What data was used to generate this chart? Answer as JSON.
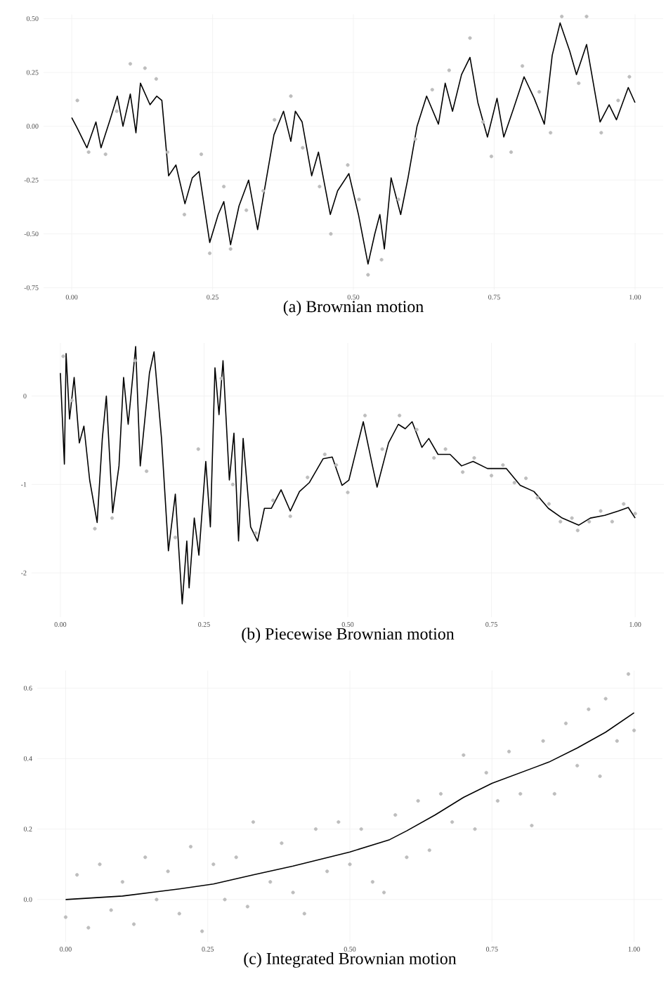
{
  "chart_data": [
    {
      "type": "line",
      "title": "(a) Brownian motion",
      "xlim": [
        -0.05,
        1.05
      ],
      "ylim": [
        -0.76,
        0.52
      ],
      "grid": true,
      "xticks": [
        {
          "value": 0,
          "label": "0.00"
        },
        {
          "value": 0.25,
          "label": "0.25"
        },
        {
          "value": 0.5,
          "label": "0.50"
        },
        {
          "value": 0.75,
          "label": "0.75"
        },
        {
          "value": 1,
          "label": "1.00"
        }
      ],
      "yticks": [
        {
          "value": -0.75,
          "label": "-0.75"
        },
        {
          "value": -0.5,
          "label": "-0.50"
        },
        {
          "value": -0.25,
          "label": "-0.25"
        },
        {
          "value": 0,
          "label": "0.00"
        },
        {
          "value": 0.25,
          "label": "0.25"
        },
        {
          "value": 0.5,
          "label": "0.50"
        }
      ],
      "series": [
        {
          "type": "scatter",
          "marker": "circle",
          "color": "#bdbdbd",
          "x": [
            0.01,
            0.03,
            0.06,
            0.08,
            0.104,
            0.13,
            0.15,
            0.17,
            0.2,
            0.23,
            0.245,
            0.27,
            0.282,
            0.31,
            0.34,
            0.36,
            0.389,
            0.41,
            0.44,
            0.46,
            0.49,
            0.51,
            0.526,
            0.55,
            0.58,
            0.61,
            0.64,
            0.67,
            0.707,
            0.73,
            0.745,
            0.78,
            0.8,
            0.83,
            0.85,
            0.87,
            0.9,
            0.914,
            0.94,
            0.97,
            0.99
          ],
          "values": [
            0.12,
            -0.12,
            -0.13,
            0.07,
            0.29,
            0.27,
            0.22,
            -0.12,
            -0.41,
            -0.13,
            -0.59,
            -0.28,
            -0.57,
            -0.39,
            -0.3,
            0.03,
            0.14,
            -0.1,
            -0.28,
            -0.5,
            -0.18,
            -0.34,
            -0.69,
            -0.62,
            -0.34,
            -0.06,
            0.17,
            0.26,
            0.41,
            0.02,
            -0.14,
            -0.12,
            0.28,
            0.16,
            -0.03,
            0.51,
            0.2,
            0.51,
            -0.03,
            0.12,
            0.23
          ]
        },
        {
          "type": "line",
          "color": "#000000",
          "x": [
            0,
            0.01,
            0.027,
            0.043,
            0.052,
            0.068,
            0.081,
            0.091,
            0.104,
            0.114,
            0.122,
            0.139,
            0.151,
            0.16,
            0.172,
            0.185,
            0.201,
            0.214,
            0.226,
            0.245,
            0.26,
            0.27,
            0.282,
            0.297,
            0.314,
            0.33,
            0.359,
            0.376,
            0.389,
            0.397,
            0.409,
            0.426,
            0.438,
            0.459,
            0.472,
            0.492,
            0.509,
            0.526,
            0.538,
            0.547,
            0.555,
            0.567,
            0.584,
            0.597,
            0.613,
            0.63,
            0.651,
            0.663,
            0.676,
            0.692,
            0.707,
            0.721,
            0.738,
            0.755,
            0.767,
            0.784,
            0.803,
            0.821,
            0.839,
            0.853,
            0.867,
            0.884,
            0.896,
            0.914,
            0.938,
            0.954,
            0.967,
            0.988,
            1.0
          ],
          "values": [
            0.04,
            -0.01,
            -0.1,
            0.02,
            -0.1,
            0.03,
            0.14,
            0.0,
            0.15,
            -0.03,
            0.2,
            0.1,
            0.14,
            0.12,
            -0.23,
            -0.18,
            -0.36,
            -0.24,
            -0.21,
            -0.54,
            -0.41,
            -0.35,
            -0.55,
            -0.37,
            -0.25,
            -0.48,
            -0.04,
            0.07,
            -0.07,
            0.07,
            0.02,
            -0.23,
            -0.12,
            -0.41,
            -0.3,
            -0.22,
            -0.41,
            -0.64,
            -0.5,
            -0.41,
            -0.57,
            -0.24,
            -0.41,
            -0.24,
            0.0,
            0.14,
            0.01,
            0.2,
            0.07,
            0.24,
            0.32,
            0.11,
            -0.05,
            0.13,
            -0.05,
            0.08,
            0.23,
            0.13,
            0.01,
            0.33,
            0.48,
            0.35,
            0.24,
            0.38,
            0.02,
            0.1,
            0.03,
            0.18,
            0.11
          ]
        }
      ]
    },
    {
      "type": "line",
      "title": "(b) Piecewise Brownian motion",
      "xlim": [
        -0.05,
        1.05
      ],
      "ylim": [
        -2.5,
        0.6
      ],
      "grid": true,
      "xticks": [
        {
          "value": 0,
          "label": "0.00"
        },
        {
          "value": 0.25,
          "label": "0.25"
        },
        {
          "value": 0.5,
          "label": "0.50"
        },
        {
          "value": 0.75,
          "label": "0.75"
        },
        {
          "value": 1,
          "label": "1.00"
        }
      ],
      "yticks": [
        -2,
        -1,
        0
      ],
      "series": [
        {
          "type": "scatter",
          "marker": "circle",
          "color": "#bdbdbd",
          "x": [
            0.005,
            0.02,
            0.06,
            0.09,
            0.13,
            0.15,
            0.2,
            0.24,
            0.28,
            0.3,
            0.34,
            0.37,
            0.4,
            0.43,
            0.46,
            0.48,
            0.5,
            0.53,
            0.56,
            0.59,
            0.62,
            0.65,
            0.67,
            0.7,
            0.72,
            0.75,
            0.77,
            0.79,
            0.81,
            0.83,
            0.85,
            0.87,
            0.89,
            0.9,
            0.92,
            0.94,
            0.96,
            0.98,
            1.0
          ],
          "values": [
            0.45,
            -0.05,
            -1.5,
            -1.38,
            0.4,
            -0.85,
            -1.6,
            -0.6,
            0.2,
            -1.0,
            -1.55,
            -1.18,
            -1.36,
            -0.92,
            -0.66,
            -0.78,
            -1.09,
            -0.22,
            -0.6,
            -0.22,
            -0.38,
            -0.7,
            -0.6,
            -0.86,
            -0.7,
            -0.9,
            -0.78,
            -0.98,
            -0.93,
            -1.15,
            -1.22,
            -1.42,
            -1.38,
            -1.52,
            -1.42,
            -1.3,
            -1.42,
            -1.22,
            -1.33
          ]
        },
        {
          "type": "line",
          "color": "#000000",
          "x": [
            0,
            0.007,
            0.01,
            0.016,
            0.024,
            0.033,
            0.041,
            0.051,
            0.064,
            0.073,
            0.08,
            0.091,
            0.102,
            0.11,
            0.118,
            0.131,
            0.139,
            0.155,
            0.163,
            0.176,
            0.188,
            0.2,
            0.212,
            0.22,
            0.224,
            0.233,
            0.241,
            0.253,
            0.261,
            0.269,
            0.276,
            0.283,
            0.294,
            0.302,
            0.31,
            0.318,
            0.331,
            0.343,
            0.355,
            0.367,
            0.384,
            0.4,
            0.416,
            0.433,
            0.457,
            0.473,
            0.49,
            0.502,
            0.527,
            0.543,
            0.551,
            0.571,
            0.588,
            0.6,
            0.612,
            0.629,
            0.641,
            0.657,
            0.678,
            0.698,
            0.718,
            0.743,
            0.776,
            0.8,
            0.824,
            0.849,
            0.873,
            0.902,
            0.922,
            0.947,
            0.971,
            0.988,
            1.0
          ],
          "values": [
            0.26,
            -0.77,
            0.48,
            -0.26,
            0.21,
            -0.53,
            -0.34,
            -0.95,
            -1.43,
            -0.48,
            0.0,
            -1.32,
            -0.79,
            0.21,
            -0.32,
            0.56,
            -0.79,
            0.26,
            0.5,
            -0.48,
            -1.75,
            -1.11,
            -2.35,
            -1.64,
            -2.17,
            -1.38,
            -1.8,
            -0.74,
            -1.48,
            0.32,
            -0.21,
            0.4,
            -0.95,
            -0.42,
            -1.64,
            -0.48,
            -1.48,
            -1.64,
            -1.27,
            -1.27,
            -1.06,
            -1.3,
            -1.08,
            -0.98,
            -0.71,
            -0.69,
            -1.01,
            -0.95,
            -0.29,
            -0.79,
            -1.03,
            -0.53,
            -0.32,
            -0.37,
            -0.29,
            -0.58,
            -0.48,
            -0.66,
            -0.66,
            -0.79,
            -0.74,
            -0.82,
            -0.82,
            -1.01,
            -1.08,
            -1.27,
            -1.38,
            -1.46,
            -1.38,
            -1.35,
            -1.3,
            -1.26,
            -1.38
          ]
        }
      ]
    },
    {
      "type": "line",
      "title": "(c) Integrated Brownian motion",
      "xlim": [
        -0.05,
        1.05
      ],
      "ylim": [
        -0.12,
        0.65
      ],
      "grid": true,
      "xticks": [
        {
          "value": 0,
          "label": "0.00"
        },
        {
          "value": 0.25,
          "label": "0.25"
        },
        {
          "value": 0.5,
          "label": "0.50"
        },
        {
          "value": 0.75,
          "label": "0.75"
        },
        {
          "value": 1,
          "label": "1.00"
        }
      ],
      "yticks": [
        {
          "value": 0,
          "label": "0.0"
        },
        0.2,
        0.4,
        0.6
      ],
      "series": [
        {
          "type": "scatter",
          "marker": "circle",
          "color": "#bdbdbd",
          "x": [
            0.0,
            0.02,
            0.04,
            0.06,
            0.08,
            0.1,
            0.12,
            0.14,
            0.16,
            0.18,
            0.2,
            0.22,
            0.24,
            0.26,
            0.28,
            0.3,
            0.32,
            0.33,
            0.36,
            0.38,
            0.4,
            0.42,
            0.44,
            0.46,
            0.48,
            0.5,
            0.52,
            0.54,
            0.56,
            0.58,
            0.6,
            0.62,
            0.64,
            0.66,
            0.68,
            0.7,
            0.72,
            0.74,
            0.76,
            0.78,
            0.8,
            0.82,
            0.84,
            0.86,
            0.88,
            0.9,
            0.92,
            0.94,
            0.95,
            0.97,
            0.99,
            1.0
          ],
          "values": [
            -0.05,
            0.07,
            -0.08,
            0.1,
            -0.03,
            0.05,
            -0.07,
            0.12,
            0.0,
            0.08,
            -0.04,
            0.15,
            -0.09,
            0.1,
            0.0,
            0.12,
            -0.02,
            0.22,
            0.05,
            0.16,
            0.02,
            -0.04,
            0.2,
            0.08,
            0.22,
            0.1,
            0.2,
            0.05,
            0.02,
            0.24,
            0.12,
            0.28,
            0.14,
            0.3,
            0.22,
            0.41,
            0.2,
            0.36,
            0.28,
            0.42,
            0.3,
            0.21,
            0.45,
            0.3,
            0.5,
            0.38,
            0.54,
            0.35,
            0.57,
            0.45,
            0.64,
            0.48
          ]
        },
        {
          "type": "line",
          "color": "#000000",
          "x": [
            0,
            0.1,
            0.2,
            0.26,
            0.33,
            0.4,
            0.5,
            0.57,
            0.6,
            0.65,
            0.7,
            0.75,
            0.85,
            0.9,
            0.95,
            1.0
          ],
          "values": [
            0,
            0.01,
            0.03,
            0.044,
            0.07,
            0.095,
            0.135,
            0.17,
            0.195,
            0.24,
            0.29,
            0.33,
            0.39,
            0.43,
            0.475,
            0.53
          ]
        }
      ]
    }
  ]
}
